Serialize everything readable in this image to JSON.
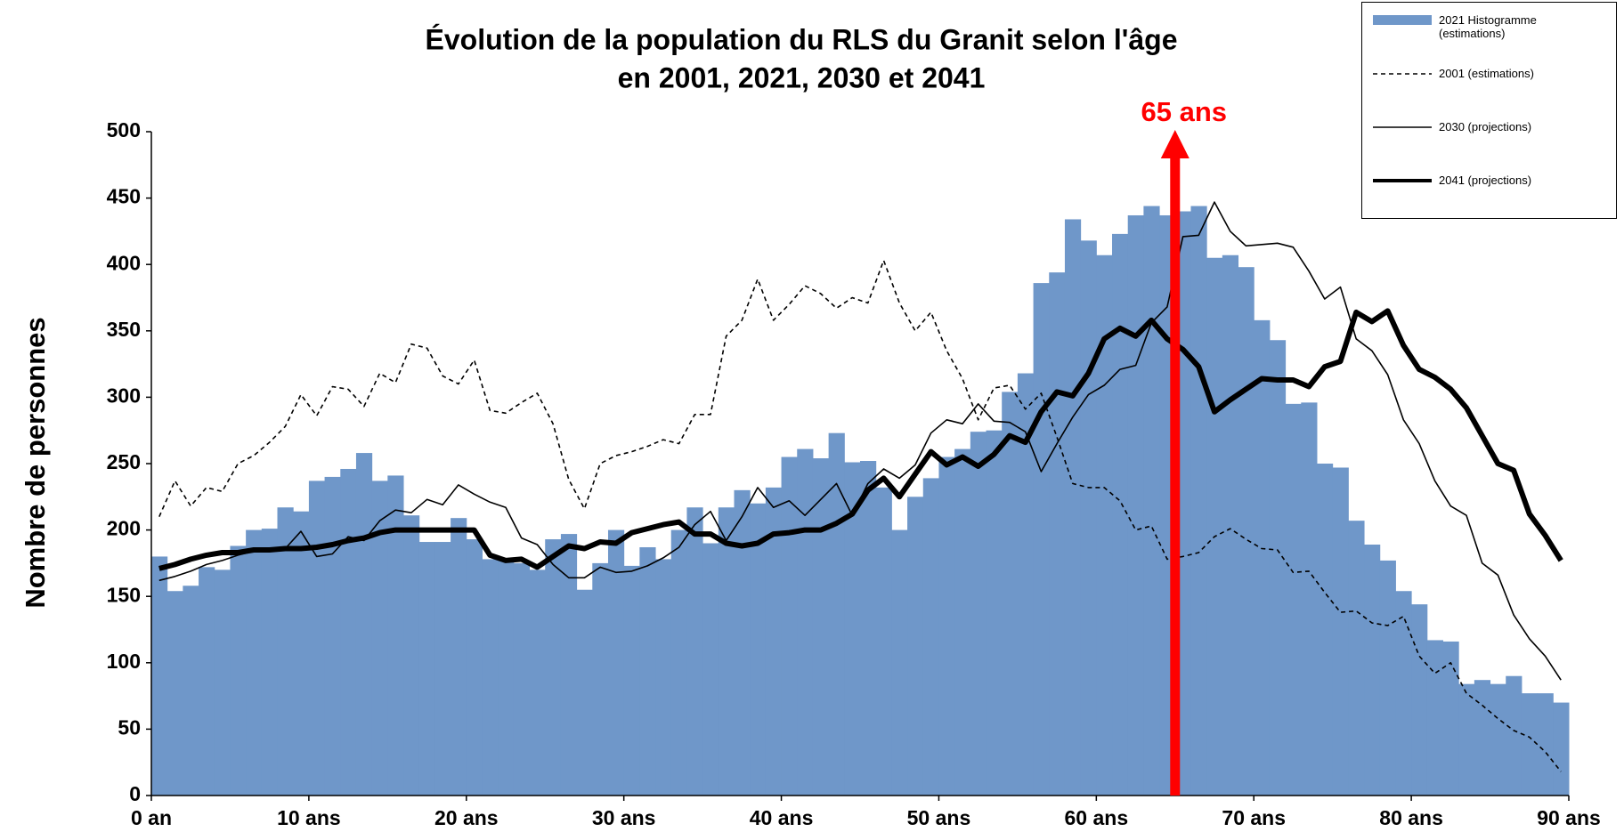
{
  "chart_data": {
    "type": "bar",
    "title": "Évolution de la population du RLS du Granit selon l'âge",
    "subtitle": "en 2001, 2021, 2030 et 2041",
    "y_label": "Nombre de personnes",
    "x": [
      0,
      1,
      2,
      3,
      4,
      5,
      6,
      7,
      8,
      9,
      10,
      11,
      12,
      13,
      14,
      15,
      16,
      17,
      18,
      19,
      20,
      21,
      22,
      23,
      24,
      25,
      26,
      27,
      28,
      29,
      30,
      31,
      32,
      33,
      34,
      35,
      36,
      37,
      38,
      39,
      40,
      41,
      42,
      43,
      44,
      45,
      46,
      47,
      48,
      49,
      50,
      51,
      52,
      53,
      54,
      55,
      56,
      57,
      58,
      59,
      60,
      61,
      62,
      63,
      64,
      65,
      66,
      67,
      68,
      69,
      70,
      71,
      72,
      73,
      74,
      75,
      76,
      77,
      78,
      79,
      80,
      81,
      82,
      83,
      84,
      85,
      86,
      87,
      88,
      89
    ],
    "xlim": [
      0,
      90
    ],
    "xticks": [
      {
        "value": 0,
        "label": "0 an"
      },
      {
        "value": 10,
        "label": "10 ans"
      },
      {
        "value": 20,
        "label": "20 ans"
      },
      {
        "value": 30,
        "label": "30 ans"
      },
      {
        "value": 40,
        "label": "40 ans"
      },
      {
        "value": 50,
        "label": "50 ans"
      },
      {
        "value": 60,
        "label": "60 ans"
      },
      {
        "value": 70,
        "label": "70 ans"
      },
      {
        "value": 80,
        "label": "80 ans"
      },
      {
        "value": 90,
        "label": "90 ans"
      }
    ],
    "ylim": [
      0,
      500
    ],
    "yticks": [
      0,
      50,
      100,
      150,
      200,
      250,
      300,
      350,
      400,
      450,
      500
    ],
    "legend": "top-right",
    "annotation": {
      "text": "65 ans",
      "x": 65,
      "color": "#ff0000"
    },
    "series": [
      {
        "name": "2021 Histogramme (estimations)",
        "type": "bar",
        "color": "#6f97c9",
        "values": [
          180,
          154,
          158,
          172,
          170,
          188,
          200,
          201,
          217,
          214,
          237,
          240,
          246,
          258,
          237,
          241,
          211,
          191,
          191,
          209,
          193,
          178,
          178,
          175,
          170,
          193,
          197,
          155,
          175,
          200,
          173,
          187,
          178,
          200,
          217,
          190,
          217,
          230,
          220,
          232,
          255,
          261,
          254,
          273,
          251,
          252,
          232,
          200,
          225,
          239,
          255,
          261,
          274,
          275,
          304,
          318,
          386,
          394,
          434,
          418,
          407,
          423,
          437,
          444,
          437,
          440,
          444,
          405,
          407,
          398,
          358,
          343,
          295,
          296,
          250,
          247,
          207,
          189,
          177,
          154,
          144,
          117,
          116,
          84,
          87,
          84,
          90,
          77,
          77,
          70
        ]
      },
      {
        "name": "2001 (estimations)",
        "type": "line",
        "color": "#000000",
        "style": "dashed",
        "weight": "thin",
        "values": [
          210,
          237,
          218,
          232,
          229,
          250,
          256,
          266,
          278,
          302,
          286,
          308,
          306,
          293,
          318,
          311,
          340,
          337,
          316,
          310,
          328,
          290,
          288,
          296,
          303,
          280,
          238,
          216,
          250,
          256,
          259,
          263,
          268,
          265,
          287,
          287,
          346,
          358,
          389,
          358,
          370,
          384,
          378,
          367,
          375,
          371,
          403,
          371,
          350,
          364,
          335,
          314,
          283,
          307,
          309,
          291,
          303,
          270,
          235,
          232,
          232,
          222,
          200,
          203,
          178,
          180,
          183,
          195,
          201,
          193,
          186,
          185,
          168,
          169,
          153,
          138,
          139,
          130,
          128,
          135,
          105,
          92,
          100,
          77,
          68,
          58,
          49,
          44,
          33,
          18
        ]
      },
      {
        "name": "2030 (projections)",
        "type": "line",
        "color": "#000000",
        "style": "solid",
        "weight": "thin",
        "values": [
          162,
          165,
          169,
          174,
          177,
          181,
          184,
          185,
          186,
          199,
          180,
          182,
          195,
          192,
          207,
          215,
          213,
          223,
          219,
          234,
          227,
          221,
          217,
          194,
          189,
          174,
          164,
          164,
          172,
          168,
          169,
          173,
          179,
          187,
          204,
          214,
          192,
          210,
          232,
          217,
          222,
          211,
          223,
          235,
          211,
          235,
          246,
          239,
          249,
          273,
          283,
          280,
          295,
          282,
          281,
          274,
          244,
          265,
          285,
          302,
          309,
          321,
          324,
          356,
          368,
          421,
          422,
          447,
          425,
          414,
          415,
          416,
          413,
          395,
          374,
          383,
          344,
          335,
          317,
          283,
          265,
          237,
          218,
          211,
          175,
          166,
          136,
          118,
          105,
          87
        ]
      },
      {
        "name": "2041 (projections)",
        "type": "line",
        "color": "#000000",
        "style": "solid",
        "weight": "thick",
        "values": [
          171,
          174,
          178,
          181,
          183,
          183,
          185,
          185,
          186,
          186,
          187,
          189,
          192,
          194,
          198,
          200,
          200,
          200,
          200,
          200,
          200,
          181,
          177,
          178,
          172,
          180,
          188,
          186,
          191,
          190,
          198,
          201,
          204,
          206,
          197,
          197,
          190,
          188,
          190,
          197,
          198,
          200,
          200,
          205,
          212,
          230,
          239,
          225,
          242,
          259,
          249,
          255,
          248,
          257,
          271,
          266,
          289,
          304,
          301,
          318,
          344,
          352,
          346,
          358,
          344,
          336,
          323,
          289,
          298,
          306,
          314,
          313,
          313,
          308,
          323,
          327,
          364,
          357,
          365,
          339,
          321,
          315,
          306,
          292,
          271,
          250,
          245,
          212,
          196,
          177
        ]
      }
    ]
  }
}
